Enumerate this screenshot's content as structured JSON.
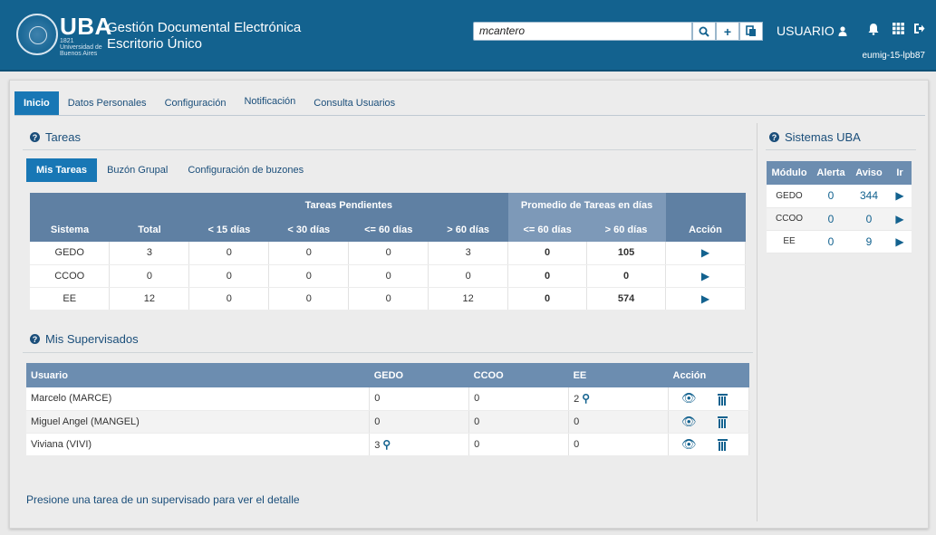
{
  "header": {
    "logo_text": "UBA",
    "logo_sub": "1821 Universidad de Buenos Aires",
    "app_title_1": "Gestión Documental Electrónica",
    "app_title_2": "Escritorio Único",
    "search_value": "mcantero",
    "user_label": "USUARIO",
    "instance": "eumig-15-lpb87",
    "icons": [
      "search-icon",
      "plus-icon",
      "copy-icon",
      "user-icon",
      "bell-icon",
      "grid-icon",
      "logout-icon"
    ]
  },
  "tabs": [
    "Inicio",
    "Datos Personales",
    "Configuración",
    "Notificación",
    "Consulta Usuarios"
  ],
  "tareas": {
    "title": "Tareas",
    "subtabs": [
      "Mis Tareas",
      "Buzón Grupal",
      "Configuración de buzones"
    ],
    "group_headers": {
      "pendientes": "Tareas Pendientes",
      "promedio": "Promedio de Tareas en días"
    },
    "columns": [
      "Sistema",
      "Total",
      "< 15 días",
      "< 30 días",
      "<= 60 días",
      "> 60 días",
      "<= 60 días",
      "> 60 días",
      "Acción"
    ],
    "rows": [
      {
        "sistema": "GEDO",
        "total": "3",
        "d15": "0",
        "d30": "0",
        "d60": "0",
        "gt60": "3",
        "p60": "0",
        "pgt60": "105"
      },
      {
        "sistema": "CCOO",
        "total": "0",
        "d15": "0",
        "d30": "0",
        "d60": "0",
        "gt60": "0",
        "p60": "0",
        "pgt60": "0"
      },
      {
        "sistema": "EE",
        "total": "12",
        "d15": "0",
        "d30": "0",
        "d60": "0",
        "gt60": "12",
        "p60": "0",
        "pgt60": "574"
      }
    ]
  },
  "supervisados": {
    "title": "Mis Supervisados",
    "columns": [
      "Usuario",
      "GEDO",
      "CCOO",
      "EE",
      "Acción"
    ],
    "rows": [
      {
        "usuario": "Marcelo (MARCE)",
        "gedo": "0",
        "ccoo": "0",
        "ee": "2"
      },
      {
        "usuario": "Miguel Angel  (MANGEL)",
        "gedo": "0",
        "ccoo": "0",
        "ee": "0"
      },
      {
        "usuario": "Viviana (VIVI)",
        "gedo": "3",
        "ccoo": "0",
        "ee": "0"
      }
    ],
    "hint": "Presione una tarea de un supervisado para ver el detalle"
  },
  "sistemas": {
    "title": "Sistemas UBA",
    "columns": [
      "Módulo",
      "Alerta",
      "Aviso",
      "Ir"
    ],
    "rows": [
      {
        "modulo": "GEDO",
        "alerta": "0",
        "aviso": "344"
      },
      {
        "modulo": "CCOO",
        "alerta": "0",
        "aviso": "0"
      },
      {
        "modulo": "EE",
        "alerta": "0",
        "aviso": "9"
      }
    ]
  },
  "colors": {
    "header": "#13628f",
    "accent": "#1877b5",
    "table_header": "#6c8db0"
  }
}
